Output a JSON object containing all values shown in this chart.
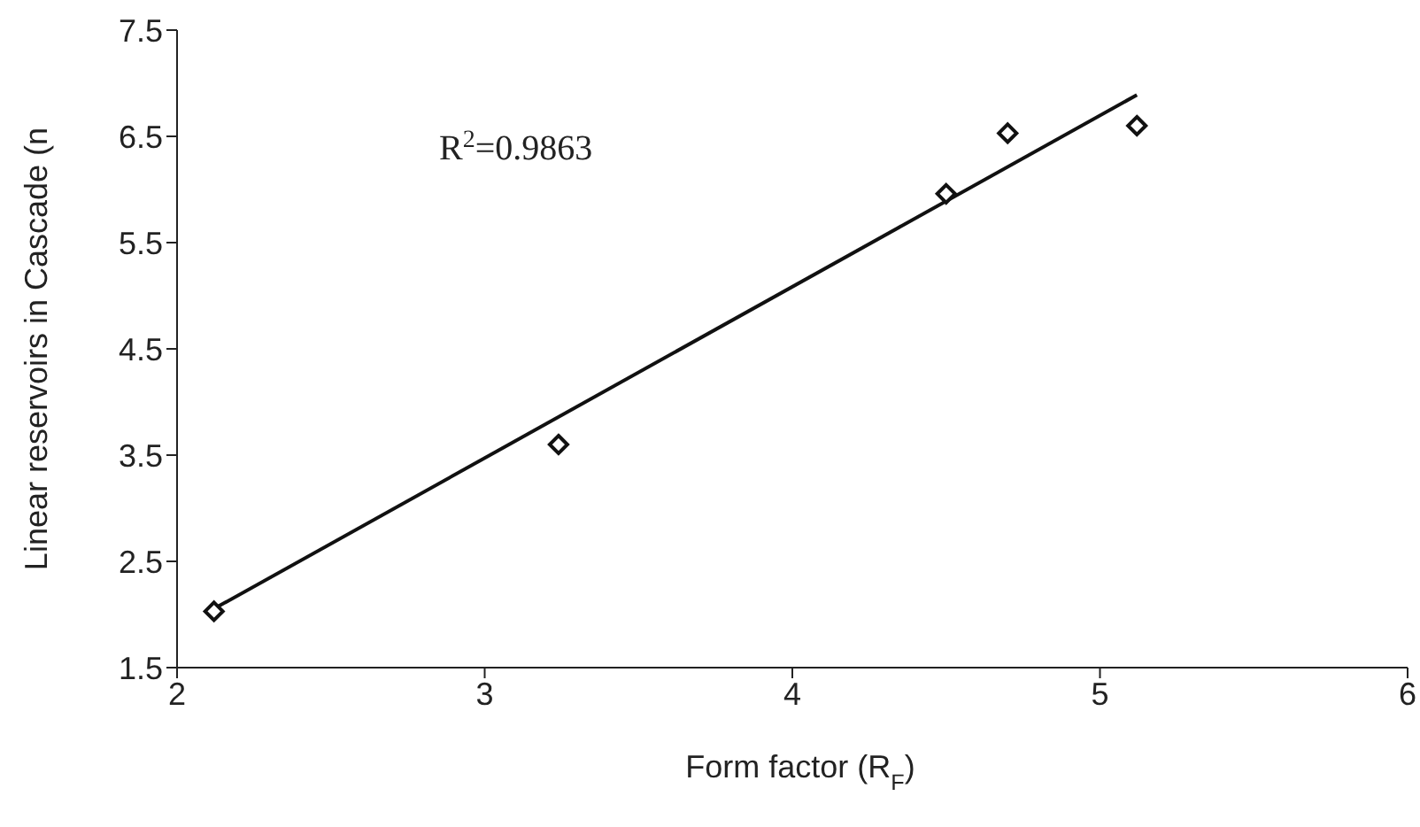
{
  "chart_data": {
    "type": "scatter",
    "xlabel": "Form factor (R$_{F}$)",
    "ylabel": "Linear reservoirs in Cascade (n",
    "annotations": [
      "R$^{2}$=0.9863"
    ],
    "xlim": [
      2,
      6
    ],
    "xticks": [
      2,
      3,
      4,
      5,
      6
    ],
    "ylim": [
      1.5,
      7.5
    ],
    "yticks": [
      1.5,
      2.5,
      3.5,
      4.5,
      5.5,
      6.5,
      7.5
    ],
    "marker": "diamond",
    "series": [
      {
        "color": "#111111",
        "x": [
          2.12,
          3.24,
          4.5,
          4.7,
          5.12
        ],
        "values": [
          2.03,
          3.6,
          5.96,
          6.53,
          6.6
        ]
      },
      {
        "type": "line",
        "color": "#111111",
        "x": [
          2.13,
          5.12
        ],
        "values": [
          2.07,
          6.89
        ],
        "marker": "none",
        "line_style": "solid"
      }
    ]
  }
}
